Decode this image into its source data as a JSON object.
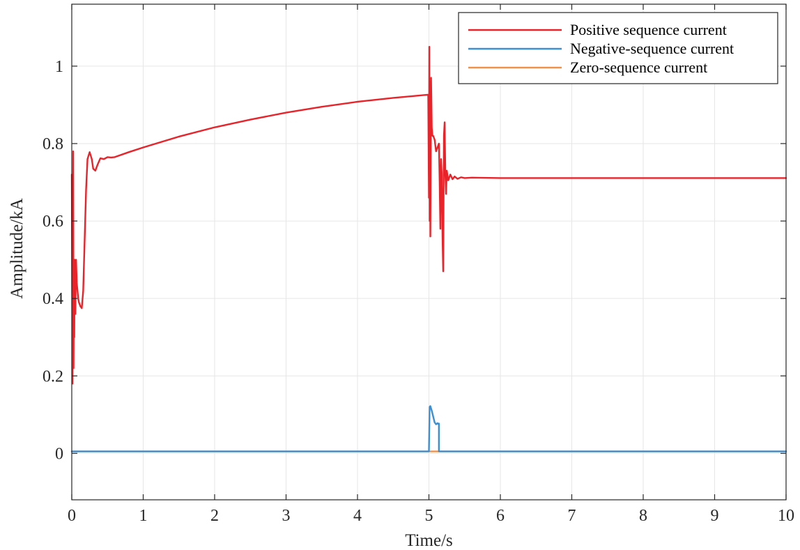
{
  "chart_data": {
    "type": "line",
    "title": "",
    "xlabel": "Time/s",
    "ylabel": "Amplitude/kA",
    "xlim": [
      0,
      10
    ],
    "ylim": [
      -0.12,
      1.16
    ],
    "x_ticks": [
      0,
      1,
      2,
      3,
      4,
      5,
      6,
      7,
      8,
      9,
      10
    ],
    "x_tick_labels": [
      "0",
      "1",
      "2",
      "3",
      "4",
      "5",
      "6",
      "7",
      "8",
      "9",
      "10"
    ],
    "y_ticks": [
      0,
      0.2,
      0.4,
      0.6,
      0.8,
      1
    ],
    "y_tick_labels": [
      "0",
      "0.2",
      "0.4",
      "0.6",
      "0.8",
      "1"
    ],
    "grid": true,
    "box": true,
    "legend_position": "top-right",
    "series": [
      {
        "name": "Positive sequence current",
        "color": "#e8242a",
        "x": [
          0,
          0.01,
          0.02,
          0.025,
          0.03,
          0.035,
          0.04,
          0.05,
          0.06,
          0.07,
          0.08,
          0.09,
          0.1,
          0.12,
          0.14,
          0.16,
          0.18,
          0.2,
          0.22,
          0.25,
          0.28,
          0.3,
          0.33,
          0.36,
          0.4,
          0.45,
          0.5,
          0.55,
          0.6,
          0.8,
          1,
          1.5,
          2,
          2.5,
          3,
          3.5,
          4,
          4.5,
          4.98,
          4.99,
          5.0,
          5.005,
          5.01,
          5.015,
          5.02,
          5.03,
          5.04,
          5.05,
          5.06,
          5.08,
          5.1,
          5.12,
          5.14,
          5.15,
          5.16,
          5.17,
          5.18,
          5.19,
          5.2,
          5.21,
          5.22,
          5.23,
          5.24,
          5.25,
          5.27,
          5.3,
          5.33,
          5.36,
          5.4,
          5.45,
          5.5,
          5.6,
          6,
          7,
          8,
          9,
          10
        ],
        "y": [
          0.72,
          0.18,
          0.78,
          0.22,
          0.5,
          0.3,
          0.5,
          0.36,
          0.5,
          0.44,
          0.42,
          0.4,
          0.39,
          0.38,
          0.375,
          0.42,
          0.55,
          0.68,
          0.76,
          0.778,
          0.76,
          0.735,
          0.73,
          0.745,
          0.762,
          0.76,
          0.765,
          0.764,
          0.765,
          0.778,
          0.79,
          0.818,
          0.842,
          0.862,
          0.88,
          0.895,
          0.908,
          0.918,
          0.926,
          0.926,
          0.66,
          1.05,
          0.6,
          0.96,
          0.56,
          0.97,
          0.84,
          0.82,
          0.82,
          0.81,
          0.78,
          0.79,
          0.8,
          0.7,
          0.58,
          0.76,
          0.72,
          0.56,
          0.47,
          0.82,
          0.855,
          0.72,
          0.67,
          0.73,
          0.705,
          0.72,
          0.708,
          0.715,
          0.709,
          0.713,
          0.711,
          0.712,
          0.711,
          0.711,
          0.711,
          0.711,
          0.711
        ]
      },
      {
        "name": "Negative-sequence current",
        "color": "#3d8fd1",
        "x": [
          0,
          4.99,
          5.0,
          5.01,
          5.02,
          5.04,
          5.06,
          5.08,
          5.1,
          5.12,
          5.13,
          5.14,
          5.14,
          5.15,
          10
        ],
        "y": [
          0.005,
          0.005,
          0.005,
          0.12,
          0.122,
          0.11,
          0.095,
          0.08,
          0.075,
          0.078,
          0.076,
          0.077,
          0.005,
          0.005,
          0.005
        ]
      },
      {
        "name": "Zero-sequence current",
        "color": "#f0914a",
        "x": [
          0,
          10
        ],
        "y": [
          0.005,
          0.005
        ]
      }
    ]
  }
}
